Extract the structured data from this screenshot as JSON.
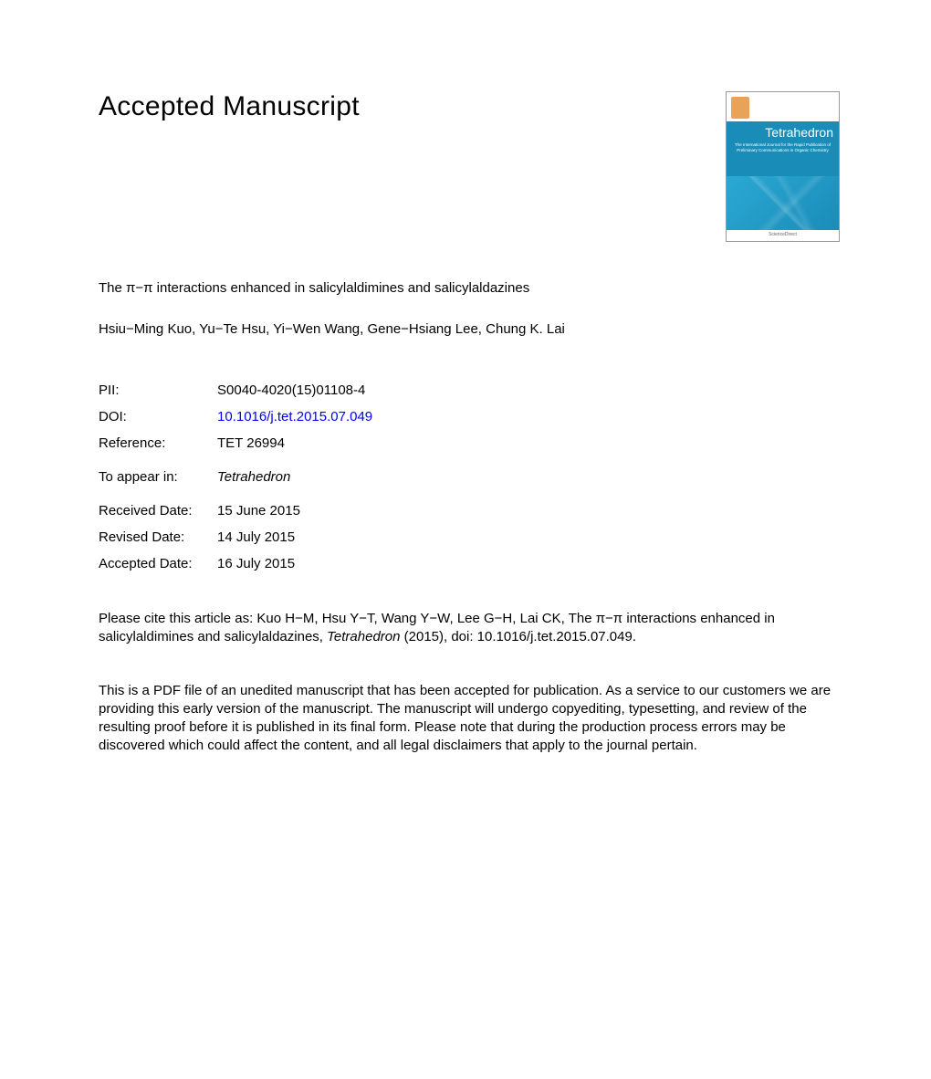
{
  "heading": "Accepted Manuscript",
  "cover": {
    "journal_name": "Tetrahedron",
    "subtitle_line1": "The International Journal for the Rapid Publication of",
    "subtitle_line2": "Preliminary Communications in Organic Chemistry",
    "footer_text": "ScienceDirect",
    "colors": {
      "band": "#1a8cb8",
      "body_light": "#2ba8d4",
      "body_dark": "#1a8cb8",
      "tree": "#e8a25a"
    }
  },
  "article": {
    "title": "The π−π interactions enhanced in salicylaldimines and salicylaldazines",
    "authors": "Hsiu−Ming Kuo, Yu−Te Hsu, Yi−Wen Wang, Gene−Hsiang Lee, Chung K. Lai"
  },
  "meta": {
    "pii_label": "PII:",
    "pii_value": "S0040-4020(15)01108-4",
    "doi_label": "DOI:",
    "doi_value": "10.1016/j.tet.2015.07.049",
    "ref_label": "Reference:",
    "ref_value": "TET 26994",
    "appear_label": "To appear in:",
    "appear_value": "Tetrahedron",
    "received_label": "Received Date:",
    "received_value": "15 June 2015",
    "revised_label": "Revised Date:",
    "revised_value": "14 July 2015",
    "accepted_label": "Accepted Date:",
    "accepted_value": "16 July 2015"
  },
  "citation": {
    "prefix": "Please cite this article as: Kuo H−M, Hsu Y−T, Wang Y−W, Lee G−H, Lai CK, The π−π interactions enhanced in salicylaldimines and salicylaldazines, ",
    "journal": "Tetrahedron",
    "suffix": " (2015), doi: 10.1016/j.tet.2015.07.049."
  },
  "disclaimer": "This is a PDF file of an unedited manuscript that has been accepted for publication. As a service to our customers we are providing this early version of the manuscript. The manuscript will undergo copyediting, typesetting, and review of the resulting proof before it is published in its final form. Please note that during the production process errors may be discovered which could affect the content, and all legal disclaimers that apply to the journal pertain."
}
